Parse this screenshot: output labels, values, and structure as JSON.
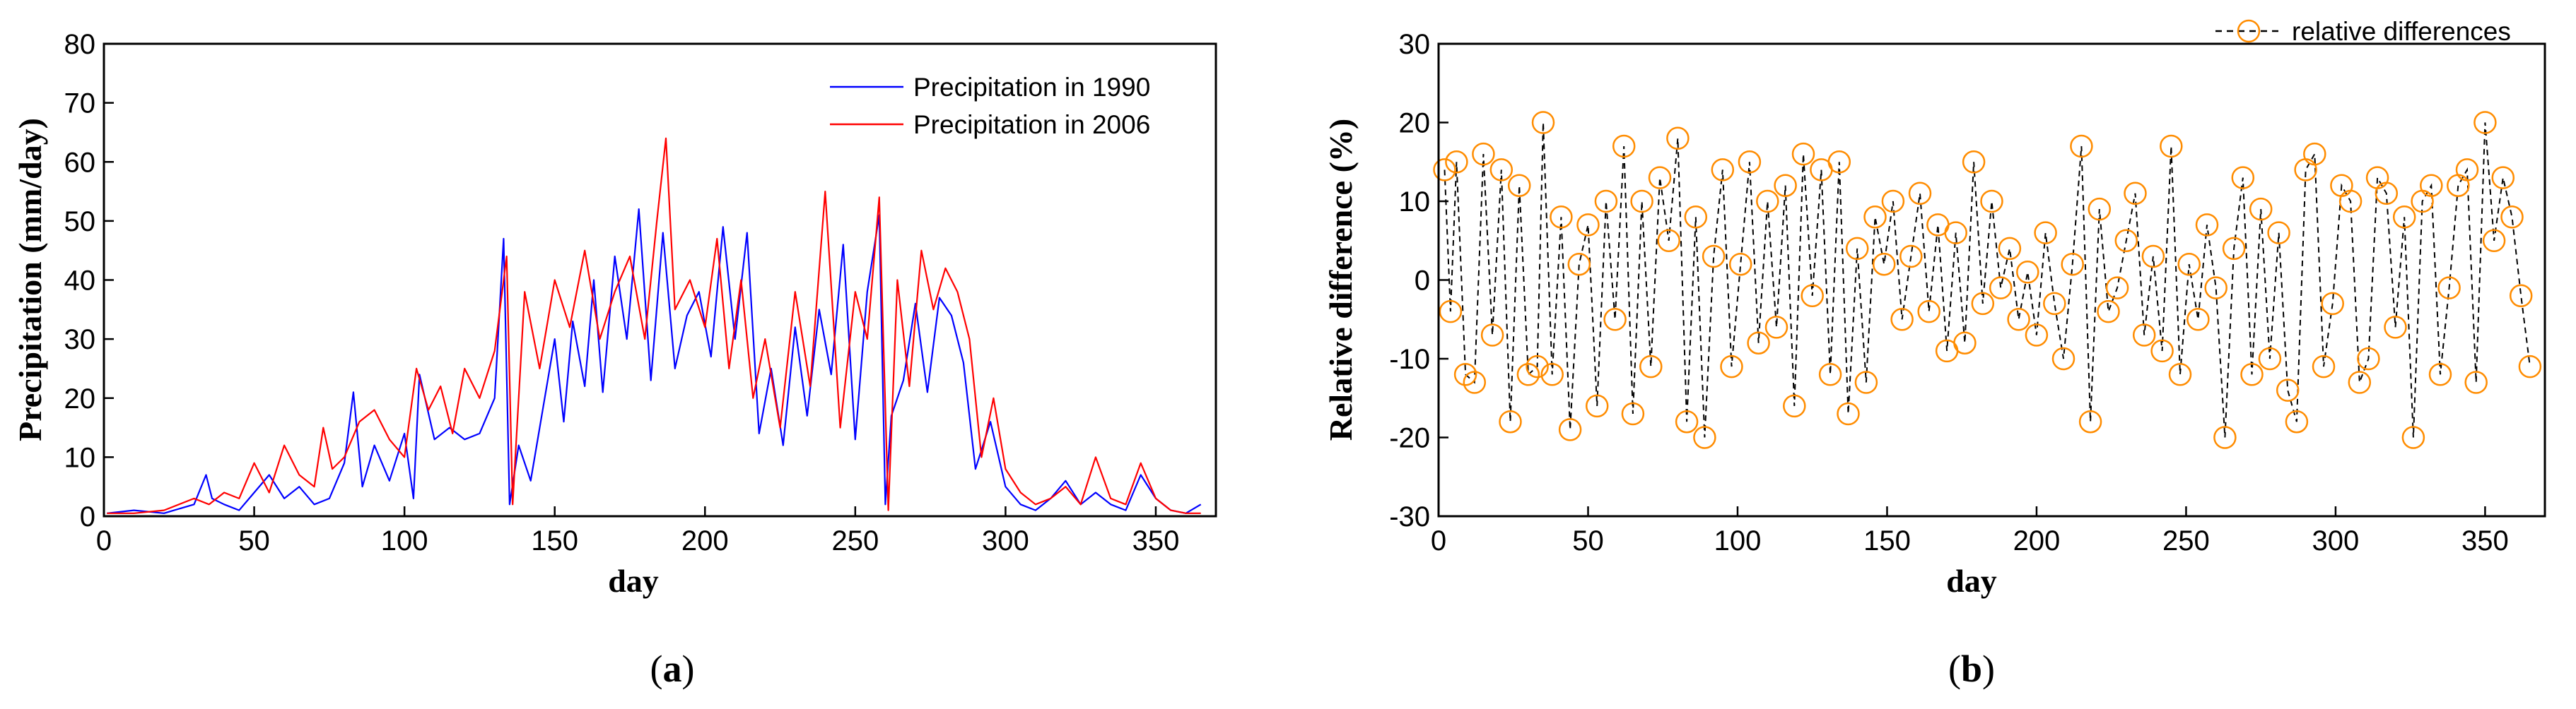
{
  "chart_data": [
    {
      "type": "line",
      "panel_label": "a",
      "xlabel": "day",
      "ylabel": "Precipitation (mm/day)",
      "xlim": [
        0,
        370
      ],
      "ylim": [
        0,
        80
      ],
      "xticks": [
        0,
        50,
        100,
        150,
        200,
        250,
        300,
        350
      ],
      "yticks": [
        0,
        10,
        20,
        30,
        40,
        50,
        60,
        70,
        80
      ],
      "legend_position": "top-right",
      "series": [
        {
          "name": "Precipitation in 1990",
          "color": "#0000ff",
          "x": [
            1,
            10,
            20,
            30,
            34,
            36,
            40,
            45,
            50,
            55,
            60,
            65,
            70,
            75,
            80,
            83,
            86,
            90,
            95,
            100,
            103,
            105,
            110,
            115,
            120,
            125,
            130,
            133,
            135,
            138,
            142,
            146,
            150,
            153,
            156,
            160,
            163,
            166,
            170,
            174,
            178,
            182,
            186,
            190,
            194,
            198,
            202,
            206,
            210,
            214,
            218,
            222,
            226,
            230,
            234,
            238,
            242,
            246,
            250,
            254,
            258,
            260,
            262,
            266,
            270,
            274,
            278,
            282,
            286,
            290,
            295,
            300,
            305,
            310,
            315,
            320,
            325,
            330,
            335,
            340,
            345,
            350,
            355,
            360,
            365
          ],
          "y": [
            0.5,
            1,
            0.5,
            2,
            7,
            3,
            2,
            1,
            4,
            7,
            3,
            5,
            2,
            3,
            9,
            21,
            5,
            12,
            6,
            14,
            3,
            24,
            13,
            15,
            13,
            14,
            20,
            47,
            2,
            12,
            6,
            18,
            30,
            16,
            33,
            22,
            40,
            21,
            44,
            30,
            52,
            23,
            48,
            25,
            34,
            38,
            27,
            49,
            30,
            48,
            14,
            25,
            12,
            32,
            17,
            35,
            24,
            46,
            13,
            38,
            51,
            2,
            17,
            23,
            36,
            21,
            37,
            34,
            26,
            8,
            16,
            5,
            2,
            1,
            3,
            6,
            2,
            4,
            2,
            1,
            7,
            3,
            1,
            0.5,
            2
          ]
        },
        {
          "name": "Precipitation in 2006",
          "color": "#ff0000",
          "x": [
            1,
            10,
            20,
            30,
            35,
            40,
            45,
            50,
            55,
            60,
            65,
            70,
            73,
            76,
            80,
            85,
            90,
            95,
            100,
            104,
            108,
            112,
            116,
            120,
            125,
            130,
            134,
            136,
            140,
            145,
            150,
            155,
            160,
            165,
            170,
            175,
            180,
            184,
            187,
            190,
            195,
            200,
            204,
            208,
            212,
            216,
            220,
            225,
            230,
            235,
            240,
            245,
            250,
            254,
            258,
            261,
            264,
            268,
            272,
            276,
            280,
            284,
            288,
            292,
            296,
            300,
            305,
            310,
            315,
            320,
            325,
            330,
            335,
            340,
            345,
            350,
            355,
            360,
            365
          ],
          "y": [
            0.5,
            0.5,
            1,
            3,
            2,
            4,
            3,
            9,
            4,
            12,
            7,
            5,
            15,
            8,
            10,
            16,
            18,
            13,
            10,
            25,
            18,
            22,
            14,
            25,
            20,
            28,
            44,
            2,
            38,
            25,
            40,
            32,
            45,
            30,
            38,
            44,
            30,
            50,
            64,
            35,
            40,
            32,
            47,
            25,
            40,
            20,
            30,
            15,
            38,
            22,
            55,
            15,
            38,
            30,
            54,
            1,
            40,
            22,
            45,
            35,
            42,
            38,
            30,
            10,
            20,
            8,
            4,
            2,
            3,
            5,
            2,
            10,
            3,
            2,
            9,
            3,
            1,
            0.5,
            0.5
          ]
        }
      ]
    },
    {
      "type": "line",
      "panel_label": "b",
      "xlabel": "day",
      "ylabel": "Relative difference (%)",
      "xlim": [
        0,
        370
      ],
      "ylim": [
        -30,
        30
      ],
      "xticks": [
        0,
        50,
        100,
        150,
        200,
        250,
        300,
        350
      ],
      "yticks": [
        -30,
        -20,
        -10,
        0,
        10,
        20,
        30
      ],
      "legend_position": "top-right",
      "series": [
        {
          "name": "relative differences",
          "color": "#ff8c00",
          "line_style": "dashed-black",
          "marker": "open-circle",
          "x": [
            2,
            4,
            6,
            9,
            12,
            15,
            18,
            21,
            24,
            27,
            30,
            33,
            35,
            38,
            41,
            44,
            47,
            50,
            53,
            56,
            59,
            62,
            65,
            68,
            71,
            74,
            77,
            80,
            83,
            86,
            89,
            92,
            95,
            98,
            101,
            104,
            107,
            110,
            113,
            116,
            119,
            122,
            125,
            128,
            131,
            134,
            137,
            140,
            143,
            146,
            149,
            152,
            155,
            158,
            161,
            164,
            167,
            170,
            173,
            176,
            179,
            182,
            185,
            188,
            191,
            194,
            197,
            200,
            203,
            206,
            209,
            212,
            215,
            218,
            221,
            224,
            227,
            230,
            233,
            236,
            239,
            242,
            245,
            248,
            251,
            254,
            257,
            260,
            263,
            266,
            269,
            272,
            275,
            278,
            281,
            284,
            287,
            290,
            293,
            296,
            299,
            302,
            305,
            308,
            311,
            314,
            317,
            320,
            323,
            326,
            329,
            332,
            335,
            338,
            341,
            344,
            347,
            350,
            353,
            356,
            359,
            362,
            365
          ],
          "y": [
            14,
            -4,
            15,
            -12,
            -13,
            16,
            -7,
            14,
            -18,
            12,
            -12,
            -11,
            20,
            -12,
            8,
            -19,
            2,
            7,
            -16,
            10,
            -5,
            17,
            -17,
            10,
            -11,
            13,
            5,
            18,
            -18,
            8,
            -20,
            3,
            14,
            -11,
            2,
            15,
            -8,
            10,
            -6,
            12,
            -16,
            16,
            -2,
            14,
            -12,
            15,
            -17,
            4,
            -13,
            8,
            2,
            10,
            -5,
            3,
            11,
            -4,
            7,
            -9,
            6,
            -8,
            15,
            -3,
            10,
            -1,
            4,
            -5,
            1,
            -7,
            6,
            -3,
            -10,
            2,
            17,
            -18,
            9,
            -4,
            -1,
            5,
            11,
            -7,
            3,
            -9,
            17,
            -12,
            2,
            -5,
            7,
            -1,
            -20,
            4,
            13,
            -12,
            9,
            -10,
            6,
            -14,
            -18,
            14,
            16,
            -11,
            -3,
            12,
            10,
            -13,
            -10,
            13,
            11,
            -6,
            8,
            -20,
            10,
            12,
            -12,
            -1,
            12,
            14,
            -13,
            20,
            5,
            13,
            8,
            -2,
            -11
          ]
        }
      ]
    }
  ]
}
